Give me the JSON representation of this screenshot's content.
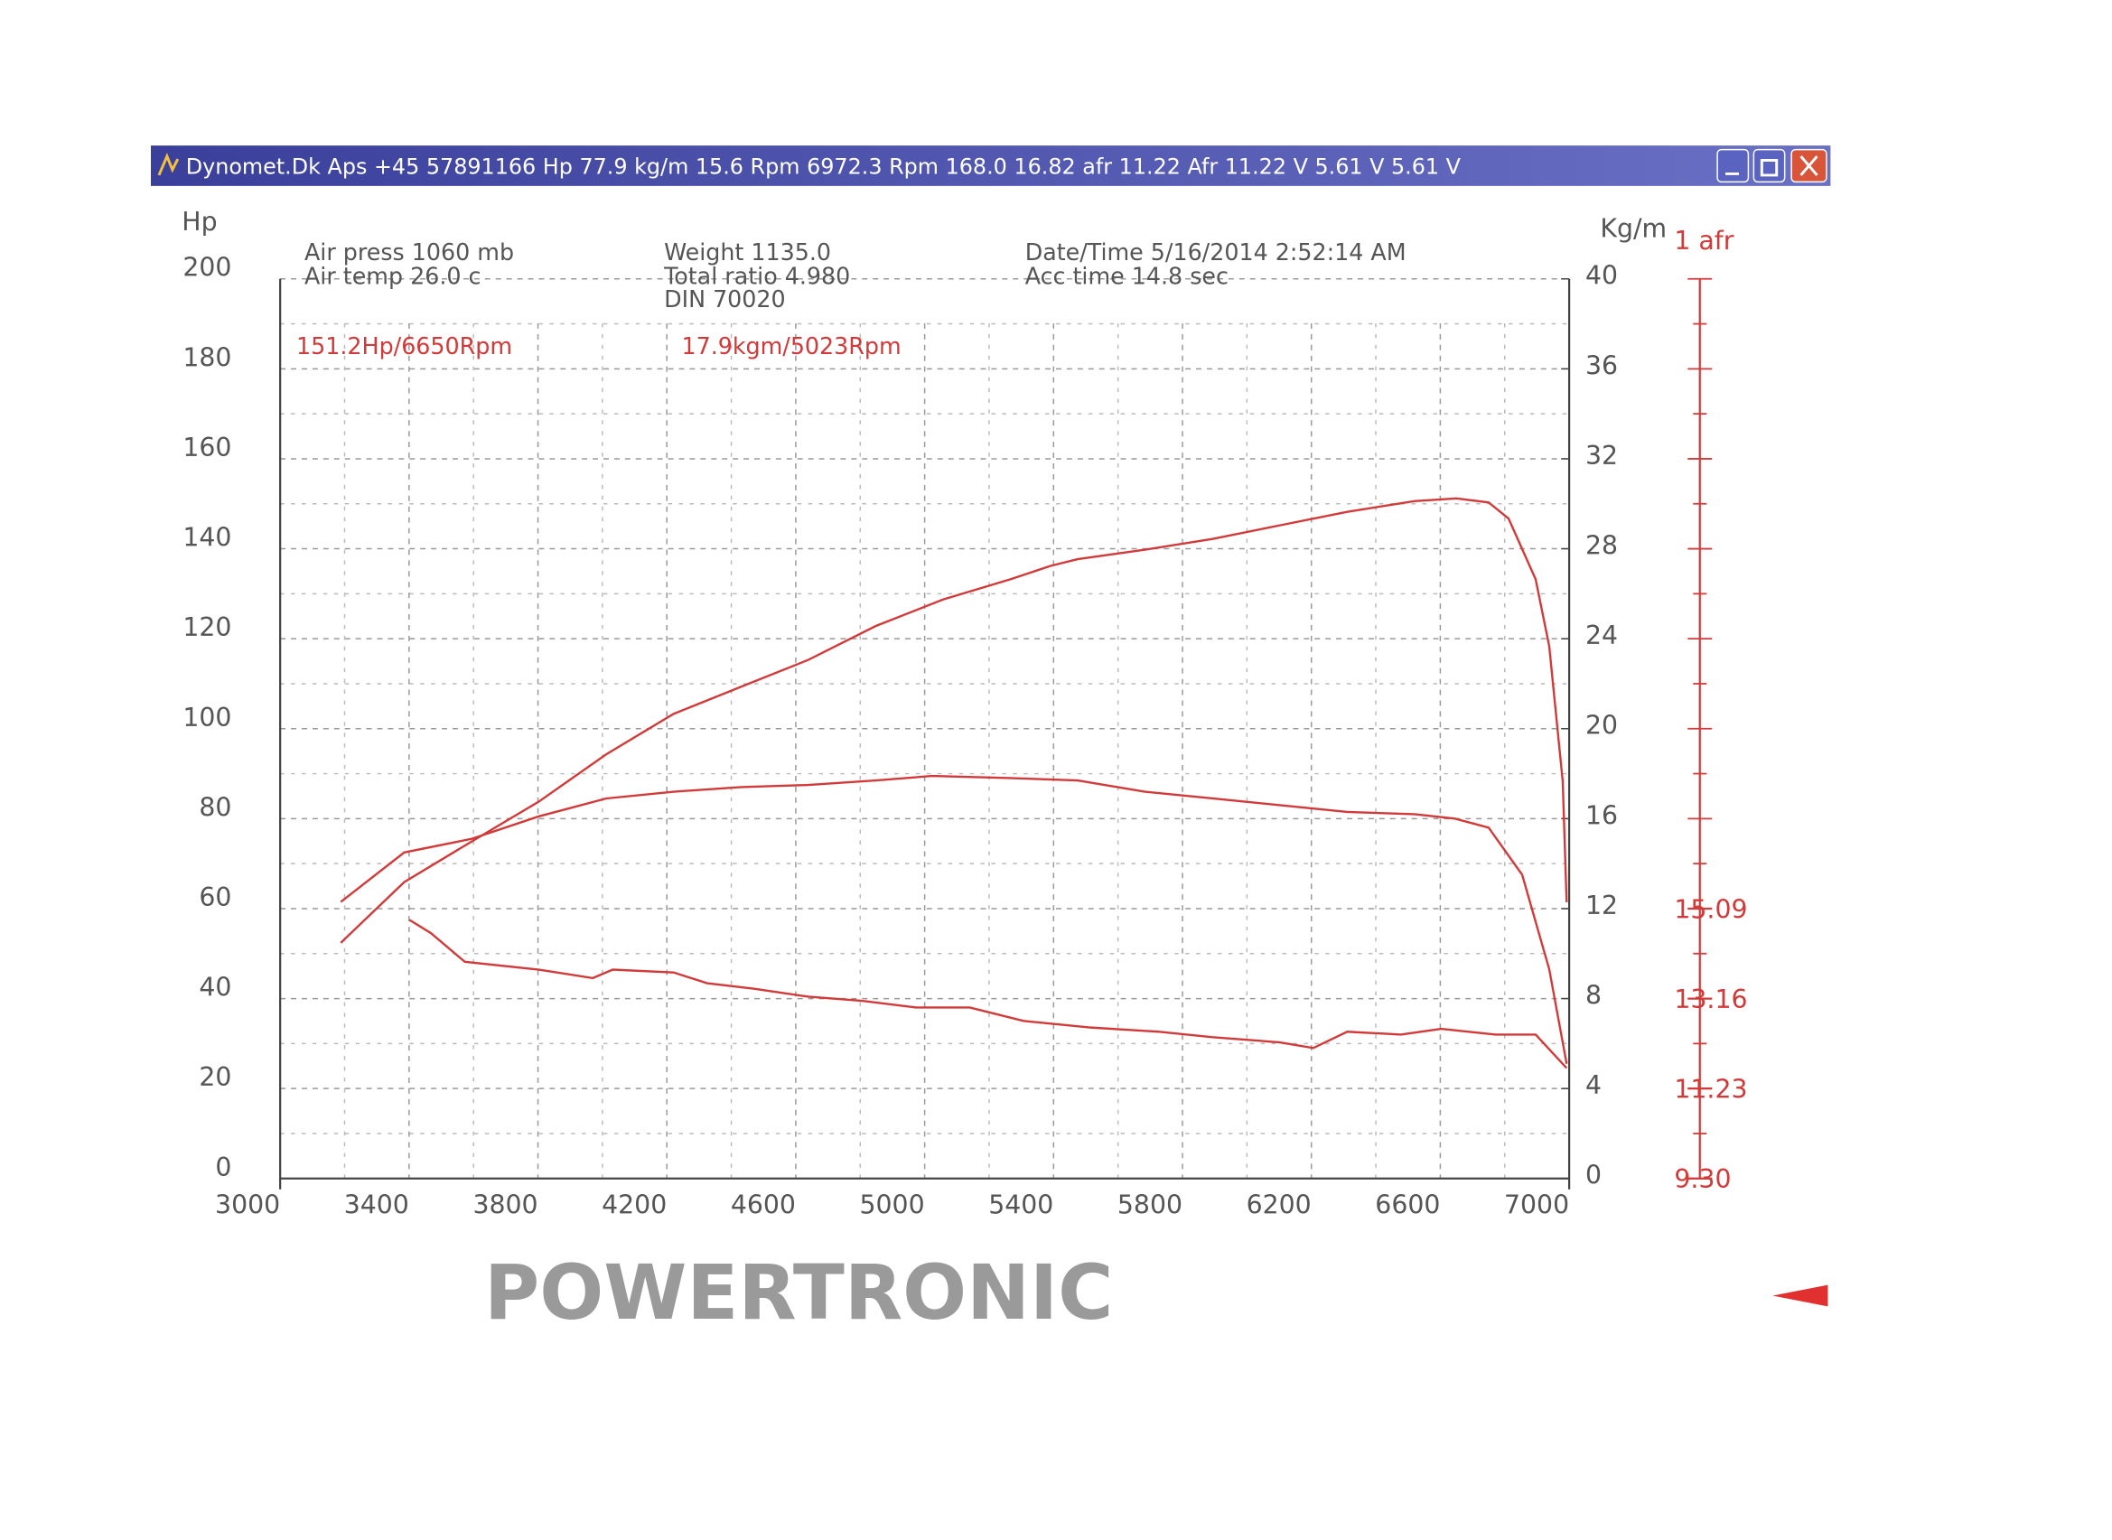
{
  "window_title": "Dynomet.Dk Aps +45 57891166 Hp 77.9 kg/m 15.6 Rpm 6972.3 Rpm 168.0   16.82 afr 11.22 Afr 11.22 V 5.61 V 5.61 V",
  "chart_data": {
    "type": "line",
    "info": [
      "Air press  1060 mb",
      "Air temp  26.0 c",
      "Weight  1135.0",
      "Total ratio 4.980",
      "DIN 70020",
      "Date/Time  5/16/2014 2:52:14 AM",
      "Acc time  14.8 sec"
    ],
    "annotations": [
      "151.2Hp/6650Rpm",
      "17.9kgm/5023Rpm"
    ],
    "y_label": "Hp",
    "y2_label": "Kg/m",
    "y3_label": "1 afr",
    "brand": "POWERTRONIC",
    "xlim": [
      3000,
      7000
    ],
    "xticks": [
      3000,
      3400,
      3800,
      4200,
      4600,
      5000,
      5400,
      5800,
      6200,
      6600,
      7000
    ],
    "ylim": [
      0,
      200
    ],
    "yticks": [
      0,
      20,
      40,
      60,
      80,
      100,
      120,
      140,
      160,
      180,
      200
    ],
    "y2lim": [
      0,
      40
    ],
    "y2ticks": [
      0,
      4,
      8,
      12,
      16,
      20,
      24,
      28,
      32,
      36,
      40
    ],
    "y3lim": [
      9.3,
      28.6
    ],
    "y3ticks": [
      {
        "value": 9.3,
        "label": "9.30"
      },
      {
        "value": 11.23,
        "label": "11.23"
      },
      {
        "value": 13.16,
        "label": "13.16"
      },
      {
        "value": 15.09,
        "label": "15.09"
      }
    ],
    "grid": true,
    "series": [
      {
        "color": "#d23a3a",
        "x": [
          3188,
          3385,
          3594,
          3803,
          4012,
          4221,
          4430,
          4639,
          4848,
          5057,
          5266,
          5391,
          5475,
          5684,
          5893,
          6102,
          6311,
          6520,
          6650,
          6750,
          6812,
          6896,
          6938,
          6980,
          6992
        ],
        "values": [
          52.4,
          65.9,
          74.9,
          83.8,
          94.3,
          103.3,
          109.3,
          115.3,
          122.8,
          128.7,
          133.2,
          136.2,
          137.7,
          139.8,
          142.2,
          145.2,
          148.2,
          150.6,
          151.2,
          150.3,
          146.7,
          133.2,
          118.3,
          88.3,
          61.4
        ]
      },
      {
        "color": "#d23a3a",
        "axis": "y2",
        "x": [
          3188,
          3385,
          3594,
          3803,
          4012,
          4221,
          4430,
          4639,
          4848,
          5023,
          5266,
          5475,
          5684,
          5893,
          6102,
          6311,
          6520,
          6645,
          6750,
          6854,
          6938,
          6992
        ],
        "values": [
          12.3,
          14.5,
          15.1,
          16.1,
          16.9,
          17.2,
          17.4,
          17.5,
          17.7,
          17.9,
          17.8,
          17.7,
          17.2,
          16.9,
          16.6,
          16.3,
          16.2,
          16.0,
          15.6,
          13.5,
          9.3,
          5.1
        ]
      },
      {
        "color": "#d23a3a",
        "axis": "y3",
        "x": [
          3401,
          3468,
          3573,
          3803,
          3970,
          4032,
          4221,
          4325,
          4471,
          4639,
          4806,
          4973,
          5140,
          5307,
          5516,
          5725,
          5893,
          6102,
          6206,
          6311,
          6478,
          6603,
          6770,
          6896,
          6992
        ],
        "values": [
          14.85,
          14.56,
          13.95,
          13.78,
          13.6,
          13.78,
          13.72,
          13.49,
          13.37,
          13.2,
          13.11,
          12.97,
          12.97,
          12.68,
          12.54,
          12.45,
          12.33,
          12.22,
          12.1,
          12.45,
          12.39,
          12.51,
          12.39,
          12.39,
          11.67
        ]
      }
    ]
  }
}
